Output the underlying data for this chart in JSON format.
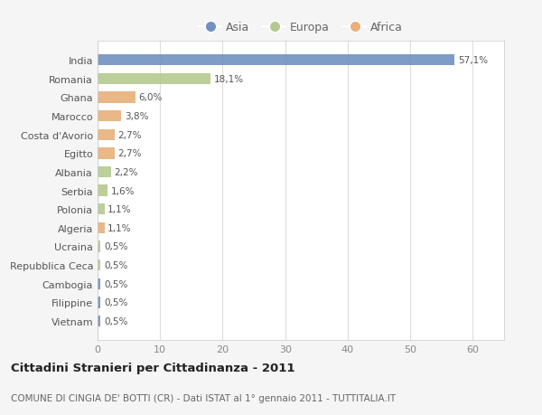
{
  "categories": [
    "India",
    "Romania",
    "Ghana",
    "Marocco",
    "Costa d'Avorio",
    "Egitto",
    "Albania",
    "Serbia",
    "Polonia",
    "Algeria",
    "Ucraina",
    "Repubblica Ceca",
    "Cambogia",
    "Filippine",
    "Vietnam"
  ],
  "values": [
    57.1,
    18.1,
    6.0,
    3.8,
    2.7,
    2.7,
    2.2,
    1.6,
    1.1,
    1.1,
    0.5,
    0.5,
    0.5,
    0.5,
    0.5
  ],
  "labels": [
    "57,1%",
    "18,1%",
    "6,0%",
    "3,8%",
    "2,7%",
    "2,7%",
    "2,2%",
    "1,6%",
    "1,1%",
    "1,1%",
    "0,5%",
    "0,5%",
    "0,5%",
    "0,5%",
    "0,5%"
  ],
  "continents": [
    "Asia",
    "Europa",
    "Africa",
    "Africa",
    "Africa",
    "Africa",
    "Europa",
    "Europa",
    "Europa",
    "Africa",
    "Europa",
    "Europa",
    "Asia",
    "Asia",
    "Asia"
  ],
  "colors": {
    "Asia": "#7191c0",
    "Europa": "#b5c98e",
    "Africa": "#e8b07a"
  },
  "title_main": "Cittadini Stranieri per Cittadinanza - 2011",
  "title_sub": "COMUNE DI CINGIA DE' BOTTI (CR) - Dati ISTAT al 1° gennaio 2011 - TUTTITALIA.IT",
  "xlim": [
    0,
    65
  ],
  "xticks": [
    0,
    10,
    20,
    30,
    40,
    50,
    60
  ],
  "background_color": "#f5f5f5",
  "plot_background": "#ffffff",
  "grid_color": "#dddddd"
}
